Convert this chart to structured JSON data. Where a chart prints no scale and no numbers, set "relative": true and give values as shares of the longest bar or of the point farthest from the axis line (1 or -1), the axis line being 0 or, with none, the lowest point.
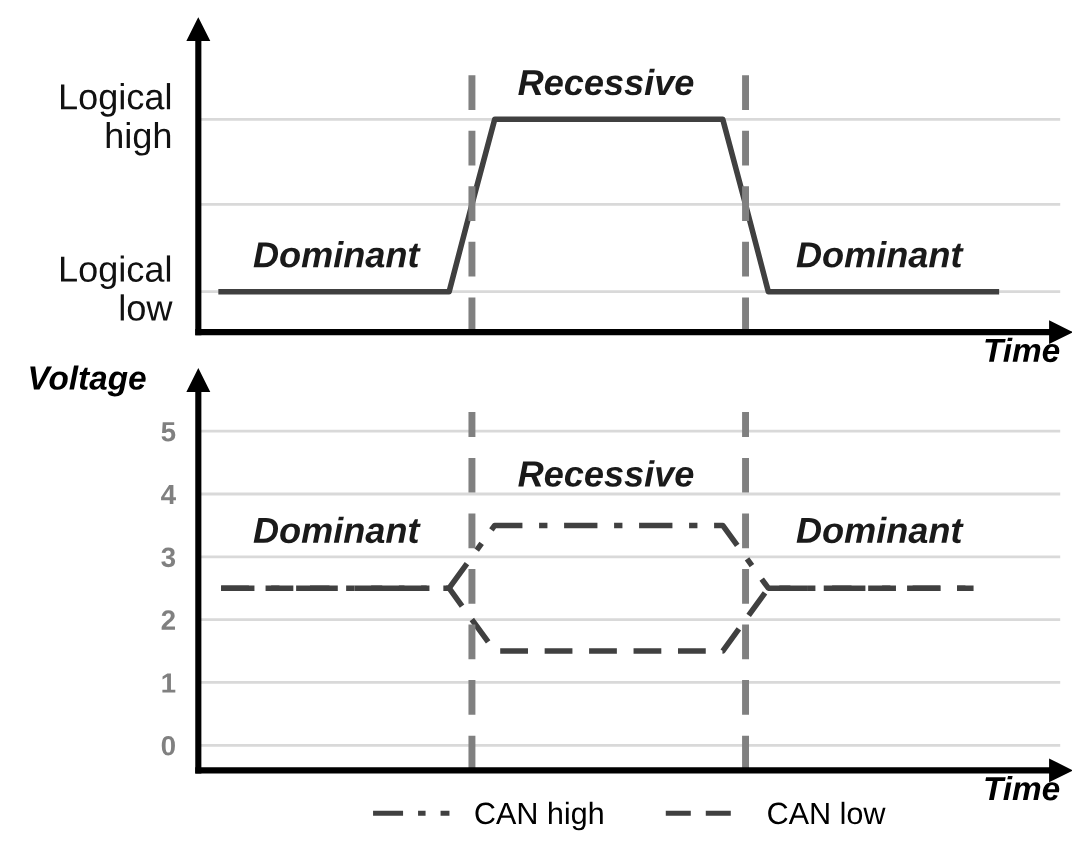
{
  "chart_data": [
    {
      "type": "line",
      "xlabel": "Time",
      "categories": [
        null,
        null,
        null,
        null,
        null,
        null,
        null,
        null,
        null,
        null,
        null,
        null,
        null,
        null,
        null,
        null,
        null,
        null,
        null,
        null,
        null,
        null,
        null,
        null,
        null,
        null,
        null,
        null,
        null,
        null,
        null,
        null,
        null,
        null,
        null
      ],
      "relative": true,
      "tick_labels": false,
      "legend": false,
      "marker": "none",
      "ref_lines": [
        {
          "axis": "y",
          "value": 0.19,
          "color": "#d9d9d9",
          "line_style": "solid"
        },
        {
          "axis": "y",
          "value": 0.6,
          "color": "#d9d9d9",
          "line_style": "solid"
        },
        {
          "axis": "y",
          "value": 1,
          "color": "#d9d9d9",
          "line_style": "solid"
        }
      ],
      "series": [
        {
          "color": "#404040",
          "line_style": "solid",
          "values": [
            0.19,
            0.19,
            0.19,
            0.19,
            0.19,
            0.19,
            0.19,
            0.19,
            0.19,
            0.19,
            0.19,
            0.6,
            1,
            1,
            1,
            1,
            1,
            1,
            1,
            1,
            1,
            1,
            1,
            0.6,
            0.19,
            0.19,
            0.19,
            0.19,
            0.19,
            0.19,
            0.19,
            0.19,
            0.19,
            0.19,
            0.19
          ]
        }
      ],
      "annotations": [
        "Logical\nhigh",
        "Logical\nlow",
        "Dominant",
        "Recessive",
        "Dominant"
      ]
    },
    {
      "type": "line",
      "xlabel": "Time",
      "ylabel": "Voltage",
      "categories": [
        null,
        null,
        null,
        null,
        null,
        null,
        null,
        null,
        null,
        null,
        null,
        null,
        null,
        null,
        null,
        null,
        null,
        null,
        null,
        null,
        null,
        null,
        null,
        null,
        null,
        null,
        null,
        null,
        null,
        null,
        null,
        null,
        null,
        null,
        null
      ],
      "ylim": [
        -0.4,
        5.8
      ],
      "yticks": [
        0,
        1,
        2,
        3,
        4,
        5
      ],
      "tick_labels": "y",
      "grid": "y",
      "legend": "bottom",
      "marker": "none",
      "series": [
        {
          "name": "CAN high",
          "color": "#404040",
          "line_style": "dashdot",
          "values": [
            2.5,
            2.5,
            2.5,
            2.5,
            2.5,
            2.5,
            2.5,
            2.5,
            2.5,
            2.5,
            2.5,
            3.0,
            3.5,
            3.5,
            3.5,
            3.5,
            3.5,
            3.5,
            3.5,
            3.5,
            3.5,
            3.5,
            3.5,
            3.0,
            2.5,
            2.5,
            2.5,
            2.5,
            2.5,
            2.5,
            2.5,
            2.5,
            2.5,
            2.5,
            null
          ]
        },
        {
          "name": "CAN low",
          "color": "#404040",
          "line_style": "dashed",
          "values": [
            2.5,
            2.5,
            2.5,
            2.5,
            2.5,
            2.5,
            2.5,
            2.5,
            2.5,
            2.5,
            2.5,
            2.0,
            1.5,
            1.5,
            1.5,
            1.5,
            1.5,
            1.5,
            1.5,
            1.5,
            1.5,
            1.5,
            1.5,
            2.0,
            2.5,
            2.5,
            2.5,
            2.5,
            2.5,
            2.5,
            2.5,
            2.5,
            2.5,
            2.5,
            null
          ]
        }
      ],
      "annotations": [
        "Dominant",
        "Recessive",
        "Dominant"
      ]
    }
  ]
}
